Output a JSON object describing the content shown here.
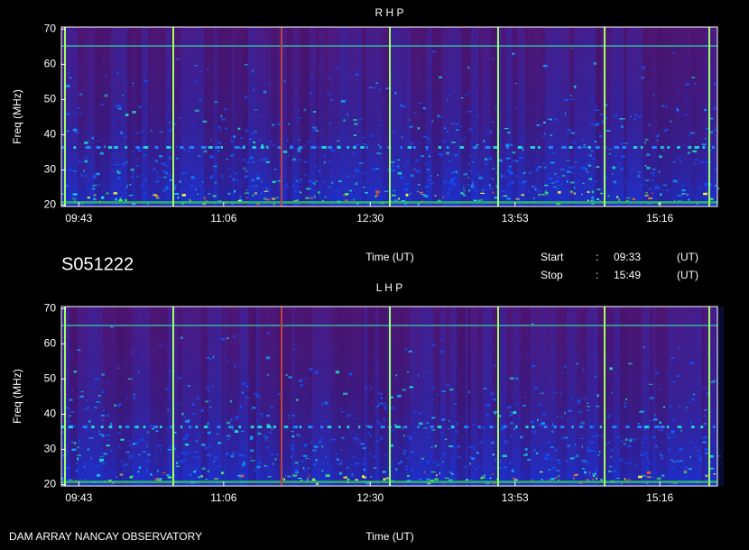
{
  "title": "S051222",
  "start_label": "Start",
  "start_sep": ":",
  "start_time": "09:33",
  "start_unit": "(UT)",
  "stop_label": "Stop",
  "stop_sep": ":",
  "stop_time": "15:49",
  "stop_unit": "(UT)",
  "footer": "DAM ARRAY  NANCAY OBSERVATORY",
  "chart_data": [
    {
      "type": "spectrogram",
      "title": "R H P",
      "xlabel": "Time (UT)",
      "ylabel": "Freq (MHz)",
      "xlim": [
        573,
        949
      ],
      "ylim": [
        19.6,
        70.6
      ],
      "xticks": [
        {
          "value": 583,
          "label": "09:43"
        },
        {
          "value": 666,
          "label": "11:06"
        },
        {
          "value": 750,
          "label": "12:30"
        },
        {
          "value": 833,
          "label": "13:53"
        },
        {
          "value": 916,
          "label": "15:16"
        }
      ],
      "yticks": [
        20,
        30,
        40,
        50,
        60,
        70
      ]
    },
    {
      "type": "spectrogram",
      "title": "L H P",
      "xlabel": "Time (UT)",
      "ylabel": "Freq (MHz)",
      "xlim": [
        573,
        949
      ],
      "ylim": [
        19.6,
        70.6
      ],
      "xticks": [
        {
          "value": 583,
          "label": "09:43"
        },
        {
          "value": 666,
          "label": "11:06"
        },
        {
          "value": 750,
          "label": "12:30"
        },
        {
          "value": 833,
          "label": "13:53"
        },
        {
          "value": 916,
          "label": "15:16"
        }
      ],
      "yticks": [
        20,
        30,
        40,
        50,
        60,
        70
      ]
    }
  ]
}
